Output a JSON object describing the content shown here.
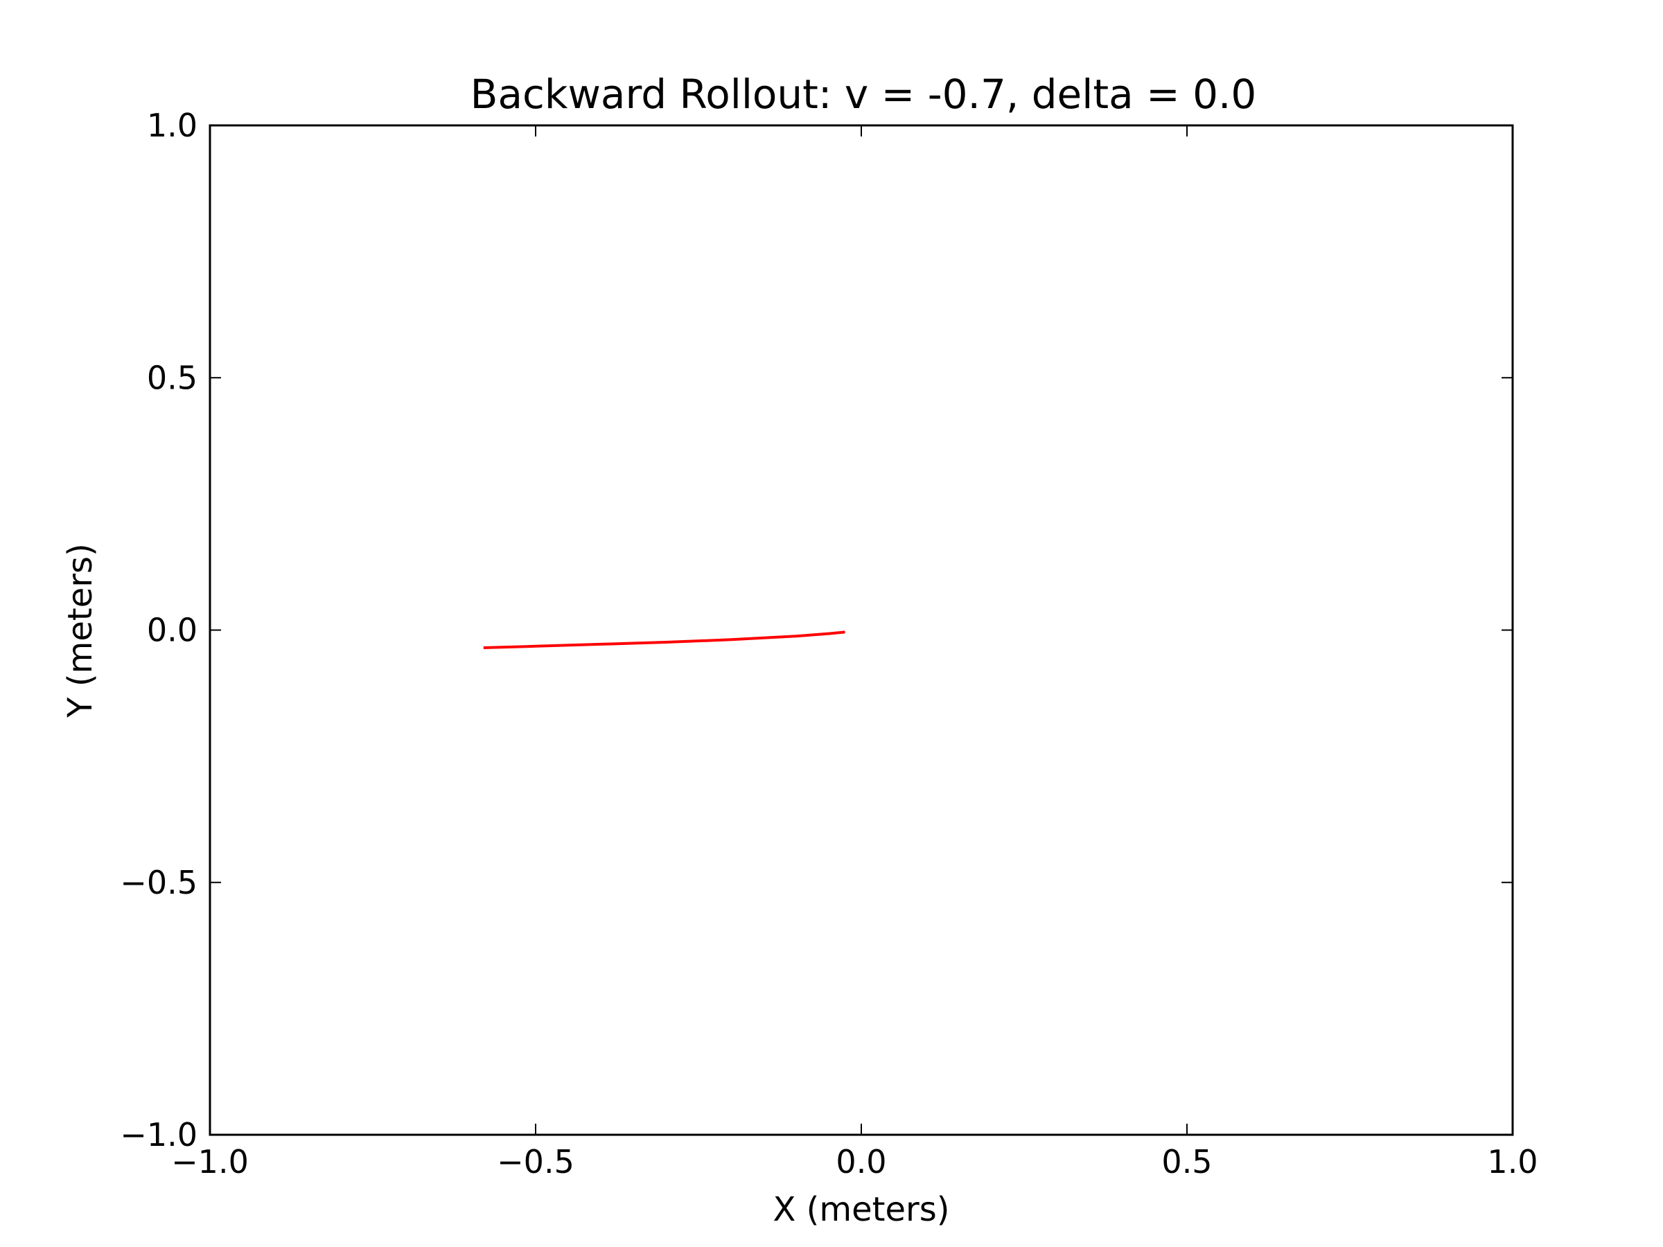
{
  "chart_data": {
    "type": "line",
    "title": "Backward Rollout: v = -0.7, delta = 0.0",
    "xlabel": "X (meters)",
    "ylabel": "Y (meters)",
    "xlim": [
      -1.0,
      1.0
    ],
    "ylim": [
      -1.0,
      1.0
    ],
    "xticks": [
      -1.0,
      -0.5,
      0.0,
      0.5,
      1.0
    ],
    "xtick_labels": [
      "−1.0",
      "−0.5",
      "0.0",
      "0.5",
      "1.0"
    ],
    "yticks": [
      -1.0,
      -0.5,
      0.0,
      0.5,
      1.0
    ],
    "ytick_labels": [
      "−1.0",
      "−0.5",
      "0.0",
      "0.5",
      "1.0"
    ],
    "grid": false,
    "legend": "none",
    "series": [
      {
        "color": "#ff0000",
        "x": [
          -0.58,
          -0.5,
          -0.4,
          -0.3,
          -0.2,
          -0.1,
          -0.05,
          -0.025
        ],
        "y": [
          -0.035,
          -0.032,
          -0.028,
          -0.024,
          -0.019,
          -0.012,
          -0.007,
          -0.004
        ]
      }
    ]
  }
}
